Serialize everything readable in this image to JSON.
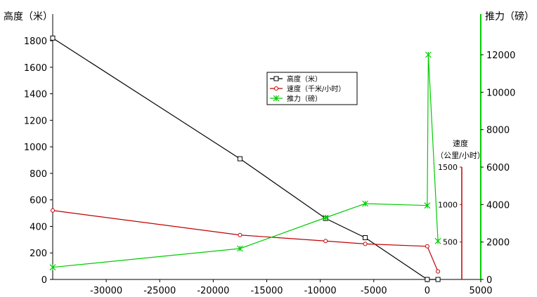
{
  "chart_data": {
    "type": "line",
    "x": [
      -35000,
      -17500,
      -9500,
      -5800,
      0,
      1000
    ],
    "xlim": [
      -35000,
      5000
    ],
    "xticks": [
      -30000,
      -25000,
      -20000,
      -15000,
      -10000,
      -5000,
      0,
      5000
    ],
    "ylabel_left": "高度（米）",
    "ylim_left": [
      0,
      1800
    ],
    "yticks_left": [
      0,
      200,
      400,
      600,
      800,
      1000,
      1200,
      1400,
      1600,
      1800
    ],
    "ylabel_right": "推力（磅）",
    "ylim_right": [
      0,
      12000
    ],
    "yticks_right": [
      0,
      2000,
      4000,
      6000,
      8000,
      10000,
      12000
    ],
    "grid": false,
    "legend_position": "center",
    "series": [
      {
        "name": "高度（米）",
        "axis": "left",
        "color": "#000000",
        "marker": "square",
        "points": [
          [
            -35000,
            1820
          ],
          [
            -17500,
            910
          ],
          [
            -9500,
            460
          ],
          [
            -5800,
            315
          ],
          [
            0,
            0
          ],
          [
            1000,
            0
          ]
        ]
      },
      {
        "name": "速度（千米/小时）",
        "axis": "left",
        "color": "#c00000",
        "marker": "circle",
        "points": [
          [
            -35000,
            520
          ],
          [
            -17500,
            335
          ],
          [
            -9500,
            290
          ],
          [
            -5800,
            268
          ],
          [
            0,
            250
          ],
          [
            1000,
            60
          ]
        ]
      },
      {
        "name": "推力（磅）",
        "axis": "right",
        "color": "#00cc00",
        "marker": "star",
        "points": [
          [
            -35000,
            650
          ],
          [
            -17500,
            1650
          ],
          [
            -9500,
            3300
          ],
          [
            -5800,
            4050
          ],
          [
            0,
            3950
          ],
          [
            100,
            12000
          ],
          [
            1000,
            2050
          ]
        ]
      }
    ],
    "inset_axis": {
      "label_line1": "速度",
      "label_line2": "（公里/小时）",
      "ticks": [
        500,
        1000,
        1500
      ],
      "color": "#c00000"
    },
    "legend": [
      "高度（米）",
      "速度（千米/小时）",
      "推力（磅）"
    ]
  }
}
